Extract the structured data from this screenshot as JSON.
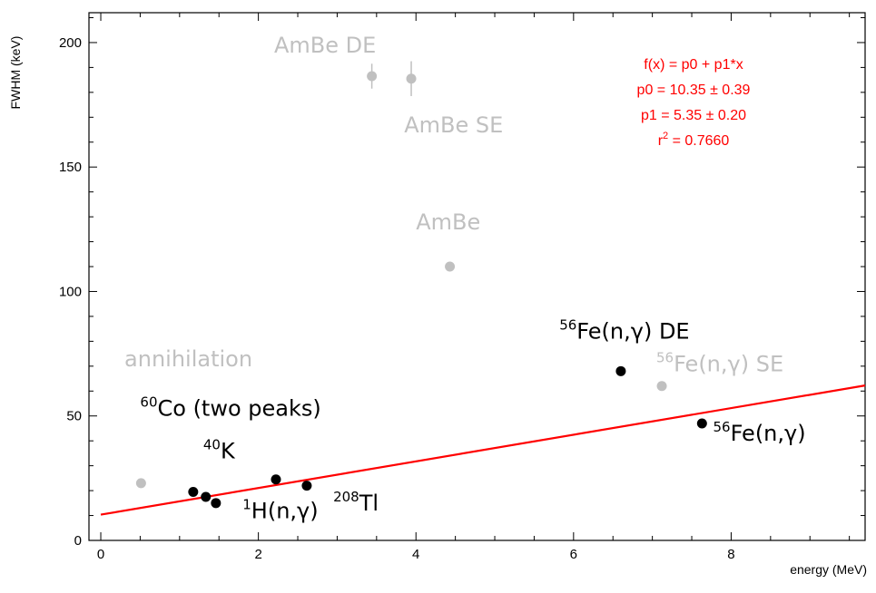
{
  "chart_data": {
    "type": "scatter",
    "xlabel": "energy (MeV)",
    "ylabel": "FWHM (keV)",
    "xlim": [
      -0.15,
      9.7
    ],
    "ylim": [
      0,
      212
    ],
    "x_ticks": [
      0,
      2,
      4,
      6,
      8
    ],
    "y_ticks": [
      0,
      50,
      100,
      150,
      200
    ],
    "grid": false,
    "colors": {
      "fit": "#ff0000",
      "included": "#000000",
      "excluded": "#c0c0c0",
      "annotation_fit": "#ff0000"
    },
    "series": [
      {
        "points": [
          {
            "x": 1.173,
            "y": 19.5
          },
          {
            "x": 1.333,
            "y": 17.5
          },
          {
            "x": 1.461,
            "y": 15.0
          },
          {
            "x": 2.223,
            "y": 24.5
          },
          {
            "x": 2.614,
            "y": 22.0
          },
          {
            "x": 6.6,
            "y": 68.0,
            "err": 1.5
          },
          {
            "x": 7.63,
            "y": 47.0
          }
        ]
      },
      {
        "points": [
          {
            "x": 0.511,
            "y": 23.0
          },
          {
            "x": 3.44,
            "y": 186.5,
            "err": 5.0
          },
          {
            "x": 3.94,
            "y": 185.5,
            "err": 7.0
          },
          {
            "x": 4.43,
            "y": 110.0,
            "err": 2.0
          },
          {
            "x": 7.12,
            "y": 62.0
          }
        ]
      }
    ],
    "fit": {
      "p0": 10.35,
      "p1": 5.35,
      "x_start": 0.0,
      "x_end": 9.7
    },
    "fit_box": {
      "line1": "f(x) = p0 + p1*x",
      "line2": "p0 = 10.35 ± 0.39",
      "line3": "p1 = 5.35 ± 0.20",
      "line4_base": "r",
      "line4_sup": "2",
      "line4_rest": " = 0.7660"
    },
    "annotations": [
      {
        "id": "ambe-de",
        "parts": [
          {
            "t": "AmBe DE"
          }
        ],
        "x": 2.2,
        "y": 196,
        "color": "#c0c0c0"
      },
      {
        "id": "ambe-se",
        "parts": [
          {
            "t": "AmBe SE"
          }
        ],
        "x": 3.85,
        "y": 164,
        "color": "#c0c0c0"
      },
      {
        "id": "ambe",
        "parts": [
          {
            "t": "AmBe"
          }
        ],
        "x": 4.0,
        "y": 125,
        "color": "#c0c0c0"
      },
      {
        "id": "annihilation",
        "parts": [
          {
            "t": "annihilation"
          }
        ],
        "x": 0.3,
        "y": 70,
        "color": "#c0c0c0"
      },
      {
        "id": "co60",
        "parts": [
          {
            "t": "60",
            "sup": true
          },
          {
            "t": "Co (two peaks)"
          }
        ],
        "x": 0.5,
        "y": 50,
        "color": "#000000"
      },
      {
        "id": "k40",
        "parts": [
          {
            "t": "40",
            "sup": true
          },
          {
            "t": "K"
          }
        ],
        "x": 1.3,
        "y": 33,
        "color": "#000000"
      },
      {
        "id": "h-ng",
        "parts": [
          {
            "t": "1",
            "sup": true
          },
          {
            "t": "H(n,γ)"
          }
        ],
        "x": 1.8,
        "y": 9,
        "color": "#000000"
      },
      {
        "id": "tl208",
        "parts": [
          {
            "t": "208",
            "sup": true
          },
          {
            "t": "Tl"
          }
        ],
        "x": 2.95,
        "y": 12,
        "color": "#000000"
      },
      {
        "id": "fe-ng-de",
        "parts": [
          {
            "t": "56",
            "sup": true
          },
          {
            "t": "Fe(n,γ) DE"
          }
        ],
        "x": 5.82,
        "y": 81,
        "color": "#000000"
      },
      {
        "id": "fe-ng-se",
        "parts": [
          {
            "t": "56",
            "sup": true
          },
          {
            "t": "Fe(n,γ) SE"
          }
        ],
        "x": 7.05,
        "y": 68,
        "color": "#c0c0c0"
      },
      {
        "id": "fe-ng",
        "parts": [
          {
            "t": "56",
            "sup": true
          },
          {
            "t": "Fe(n,γ)"
          }
        ],
        "x": 7.77,
        "y": 40,
        "color": "#000000"
      }
    ]
  }
}
